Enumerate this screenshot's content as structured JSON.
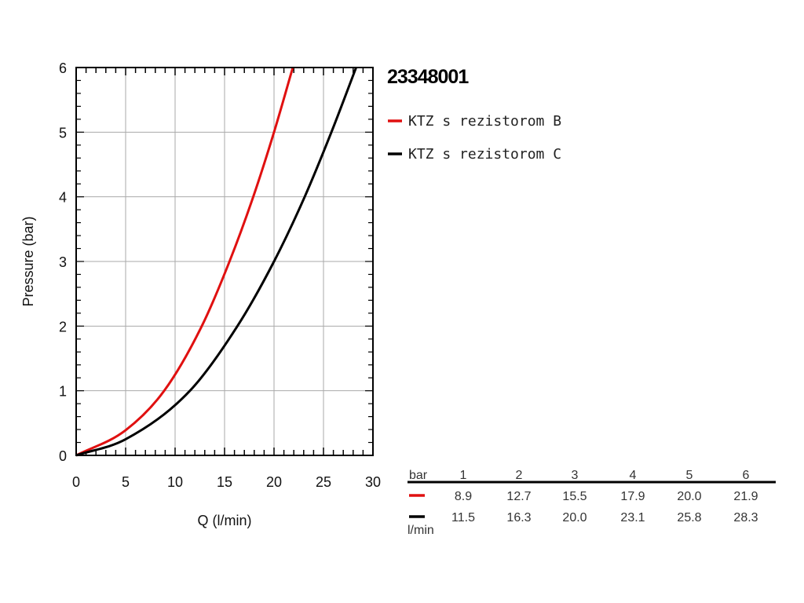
{
  "chart_data": {
    "type": "line",
    "title": "23348001",
    "xlabel": "Q (l/min)",
    "ylabel": "Pressure (bar)",
    "xlim": [
      0,
      30
    ],
    "ylim": [
      0,
      6
    ],
    "x_ticks": [
      "0",
      "5",
      "10",
      "15",
      "20",
      "25",
      "30"
    ],
    "y_ticks": [
      "0",
      "1",
      "2",
      "3",
      "4",
      "5",
      "6"
    ],
    "grid": true,
    "legend_position": "top-right-outside",
    "series": [
      {
        "name": "KTZ s rezistorom B",
        "color": "#e01010",
        "points": [
          [
            0,
            0
          ],
          [
            5,
            0.39
          ],
          [
            8.9,
            1
          ],
          [
            12.7,
            2
          ],
          [
            15.5,
            3
          ],
          [
            17.9,
            4
          ],
          [
            20.0,
            5
          ],
          [
            21.9,
            6
          ]
        ]
      },
      {
        "name": "KTZ s rezistorom C",
        "color": "#000000",
        "points": [
          [
            0,
            0
          ],
          [
            5,
            0.25
          ],
          [
            11.5,
            1
          ],
          [
            16.3,
            2
          ],
          [
            20.0,
            3
          ],
          [
            23.1,
            4
          ],
          [
            25.8,
            5
          ],
          [
            28.3,
            6
          ]
        ]
      }
    ],
    "table": {
      "header_label": "bar",
      "unit_label": "l/min",
      "columns": [
        "1",
        "2",
        "3",
        "4",
        "5",
        "6"
      ],
      "rows": [
        {
          "color": "#e01010",
          "values": [
            "8.9",
            "12.7",
            "15.5",
            "17.9",
            "20.0",
            "21.9"
          ]
        },
        {
          "color": "#000000",
          "values": [
            "11.5",
            "16.3",
            "20.0",
            "23.1",
            "25.8",
            "28.3"
          ]
        }
      ]
    }
  }
}
